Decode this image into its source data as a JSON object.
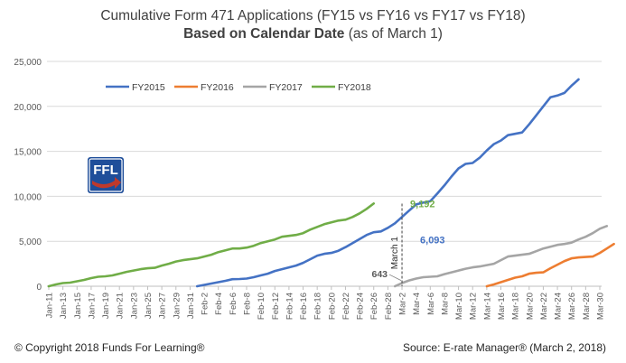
{
  "title_line1": "Cumulative Form 471 Applications (FY15 vs FY16 vs FY17 vs FY18)",
  "title_line2_bold": "Based on Calendar Date",
  "title_line2_rest": " (as of March 1)",
  "footer_left": "© Copyright 2018 Funds For Learning®",
  "footer_right": "Source: E-rate Manager® (March 2, 2018)",
  "logo_text": "FFL",
  "chart_data": {
    "type": "line",
    "title": "Cumulative Form 471 Applications (FY15 vs FY16 vs FY17 vs FY18)",
    "subtitle": "Based on Calendar Date (as of March 1)",
    "ylim": [
      0,
      25000
    ],
    "yticks": [
      0,
      5000,
      10000,
      15000,
      20000,
      25000
    ],
    "ytick_labels": [
      "0",
      "5,000",
      "10,000",
      "15,000",
      "20,000",
      "25,000"
    ],
    "xtick_labels": [
      "Jan-11",
      "Jan-13",
      "Jan-15",
      "Jan-17",
      "Jan-19",
      "Jan-21",
      "Jan-23",
      "Jan-25",
      "Jan-27",
      "Jan-29",
      "Jan-31",
      "Feb-2",
      "Feb-4",
      "Feb-6",
      "Feb-8",
      "Feb-10",
      "Feb-12",
      "Feb-14",
      "Feb-16",
      "Feb-18",
      "Feb-20",
      "Feb-22",
      "Feb-24",
      "Feb-26",
      "Feb-28",
      "Mar-2",
      "Mar-4",
      "Mar-6",
      "Mar-8",
      "Mar-10",
      "Mar-12",
      "Mar-14",
      "Mar-16",
      "Mar-18",
      "Mar-20",
      "Mar-22",
      "Mar-24",
      "Mar-26",
      "Mar-28",
      "Mar-30"
    ],
    "grid": true,
    "legend_position": "top-left",
    "series": [
      {
        "name": "FY2015",
        "color": "#4472C4",
        "start": "Feb-1",
        "values": [
          0,
          150,
          300,
          450,
          600,
          780,
          800,
          850,
          1000,
          1200,
          1400,
          1700,
          1900,
          2100,
          2300,
          2600,
          3000,
          3400,
          3600,
          3700,
          3950,
          4350,
          4800,
          5250,
          5700,
          6000,
          6093,
          6500,
          7000,
          7700,
          8400,
          9100,
          9300,
          9450,
          10300,
          11200,
          12200,
          13100,
          13600,
          13700,
          14300,
          15100,
          15800,
          16200,
          16800,
          16950,
          17100,
          18000,
          19000,
          20000,
          21000,
          21200,
          21500,
          22300,
          23000
        ]
      },
      {
        "name": "FY2016",
        "color": "#ED7D31",
        "start": "Mar-13",
        "values": [
          0,
          200,
          450,
          700,
          950,
          1100,
          1400,
          1500,
          1550,
          2000,
          2400,
          2800,
          3100,
          3200,
          3250,
          3300,
          3700,
          4200,
          4700
        ]
      },
      {
        "name": "FY2017",
        "color": "#A5A5A5",
        "start": "Feb-29",
        "values": [
          0,
          350,
          643,
          850,
          1000,
          1050,
          1100,
          1350,
          1550,
          1750,
          1950,
          2100,
          2200,
          2350,
          2500,
          2900,
          3300,
          3400,
          3500,
          3600,
          3900,
          4200,
          4400,
          4600,
          4700,
          4850,
          5200,
          5500,
          5900,
          6400,
          6700
        ]
      },
      {
        "name": "FY2018",
        "color": "#70AD47",
        "start": "Jan-11",
        "values": [
          0,
          200,
          350,
          400,
          550,
          700,
          900,
          1050,
          1100,
          1200,
          1400,
          1600,
          1750,
          1900,
          2000,
          2050,
          2300,
          2500,
          2750,
          2900,
          3000,
          3100,
          3300,
          3500,
          3800,
          4000,
          4200,
          4200,
          4300,
          4500,
          4800,
          5000,
          5200,
          5500,
          5600,
          5700,
          5900,
          6300,
          6600,
          6900,
          7100,
          7300,
          7400,
          7700,
          8100,
          8600,
          9192
        ]
      }
    ],
    "annotations": [
      {
        "text": "9,192",
        "series": "FY2018",
        "color": "#70AD47"
      },
      {
        "text": "6,093",
        "series": "FY2015",
        "color": "#4472C4"
      },
      {
        "text": "643",
        "series": "FY2017",
        "color": "#595959"
      },
      {
        "text": "March 1",
        "type": "vertical-line",
        "at": "Mar-1"
      }
    ]
  }
}
